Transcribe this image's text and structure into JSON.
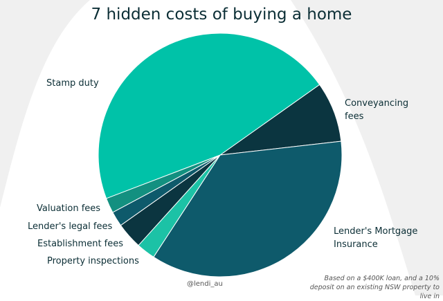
{
  "chart_data": {
    "type": "pie",
    "title": "7 hidden costs of buying a home",
    "categories": [
      "Conveyancing fees",
      "Lender's Mortgage Insurance",
      "Property inspections",
      "Establishment fees",
      "Lender's legal fees",
      "Valuation fees",
      "Stamp duty"
    ],
    "values": [
      8,
      36,
      2.5,
      3.5,
      2,
      2,
      46
    ],
    "colors": [
      "#0b3540",
      "#0e5a6b",
      "#1cc2a6",
      "#0b3540",
      "#0e5a6b",
      "#139080",
      "#00c2a8"
    ],
    "credit": "@lendi_au",
    "note": "Based on a $400K loan, and a 10% deposit on an existing NSW property to live in"
  }
}
